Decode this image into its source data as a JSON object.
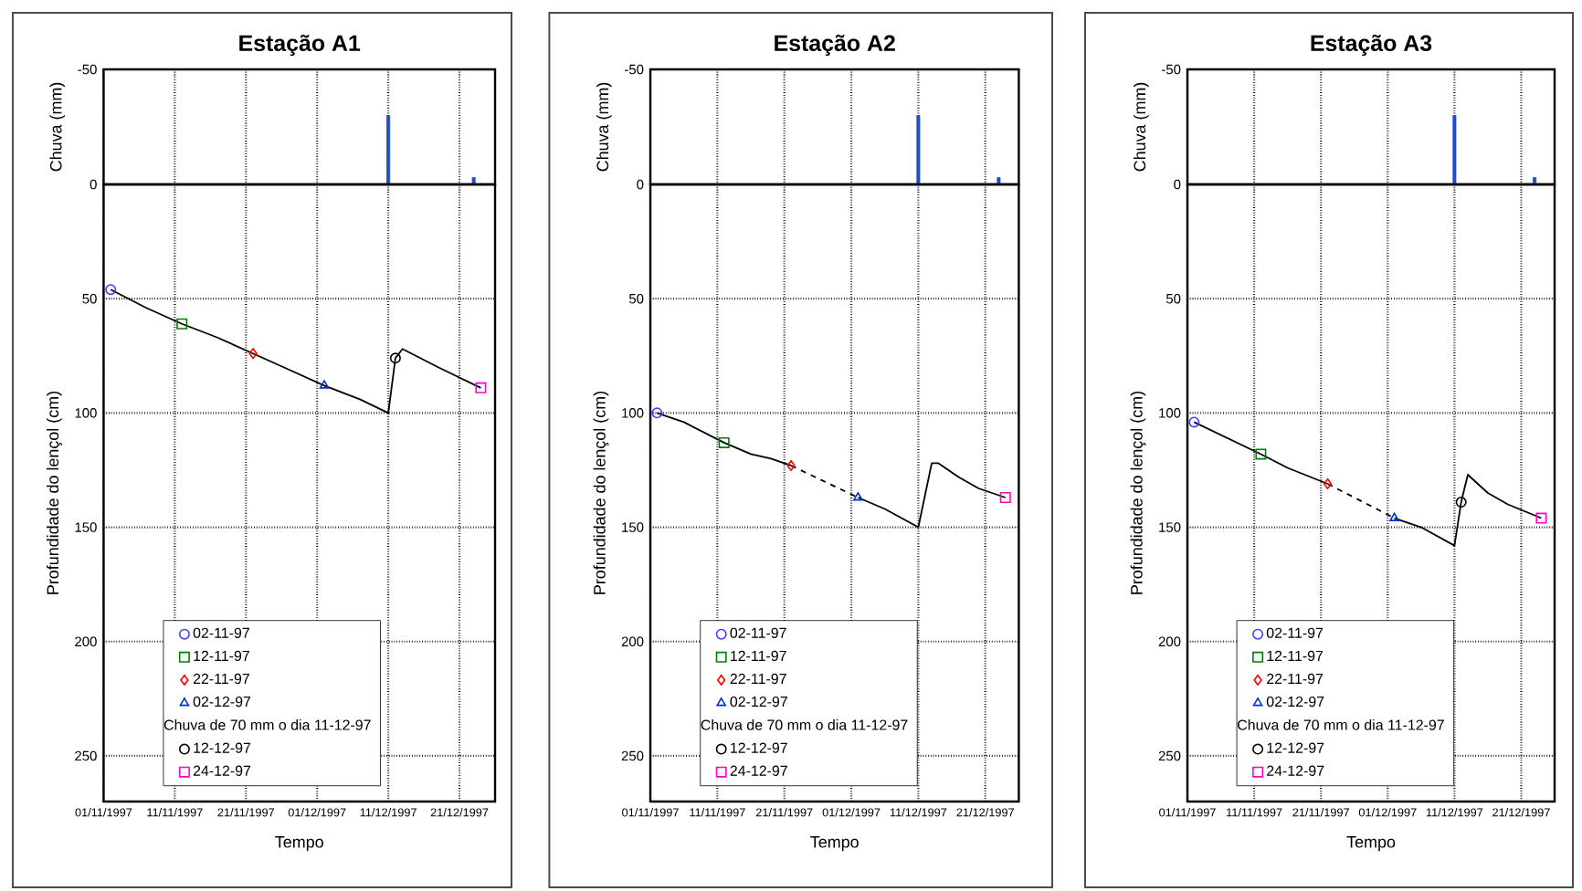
{
  "chart_data": [
    {
      "type": "bar",
      "title": "Estação A1",
      "ylabel": "Chuva (mm)",
      "x": [
        "1997-12-11",
        "1997-12-23"
      ],
      "values": [
        -30,
        -3
      ],
      "color": "#1f4fc8",
      "xlim": [
        "1997-11-01",
        "1997-12-26"
      ],
      "xticks": [
        {
          "value": "1997-11-01",
          "label": null
        },
        {
          "value": "1997-11-11",
          "label": null
        },
        {
          "value": "1997-11-21",
          "label": null
        },
        {
          "value": "1997-12-01",
          "label": null
        },
        {
          "value": "1997-12-11",
          "label": null
        },
        {
          "value": "1997-12-21",
          "label": null
        }
      ],
      "ylim": [
        0,
        -50
      ],
      "yticks": [
        -50,
        0
      ],
      "grid": true,
      "tick_labels": "y"
    },
    {
      "type": "line",
      "xlabel": "Tempo",
      "ylabel": "Profundidade do lençol (cm)",
      "xlim": [
        "1997-11-01",
        "1997-12-26"
      ],
      "xticks": [
        {
          "value": "1997-11-01",
          "label": "01/11/1997"
        },
        {
          "value": "1997-11-11",
          "label": "11/11/1997"
        },
        {
          "value": "1997-11-21",
          "label": "21/11/1997"
        },
        {
          "value": "1997-12-01",
          "label": "01/12/1997"
        },
        {
          "value": "1997-12-11",
          "label": "11/12/1997"
        },
        {
          "value": "1997-12-21",
          "label": "21/12/1997"
        }
      ],
      "ylim": [
        270,
        0
      ],
      "yticks": [
        50,
        100,
        150,
        200,
        250
      ],
      "grid": true,
      "legend": "bottom",
      "annotations": [
        "Chuva de 70 mm o dia 11-12-97"
      ],
      "series": [
        {
          "type": "line",
          "color": "#000000",
          "line_style": "solid",
          "x": [
            "1997-11-02",
            "1997-11-07",
            "1997-11-12",
            "1997-11-17",
            "1997-11-22",
            "1997-11-27",
            "1997-12-02",
            "1997-12-07",
            "1997-12-11",
            "1997-12-12",
            "1997-12-13",
            "1997-12-18",
            "1997-12-24"
          ],
          "values": [
            46,
            54,
            61,
            67,
            74,
            81,
            88,
            94,
            100,
            76,
            72,
            80,
            89
          ]
        },
        {
          "type": "scatter",
          "name": "02-11-97",
          "color": "#4040ff",
          "marker": "circle",
          "x": [
            "1997-11-02"
          ],
          "values": [
            46
          ]
        },
        {
          "type": "scatter",
          "name": "12-11-97",
          "color": "#008000",
          "marker": "square",
          "x": [
            "1997-11-12"
          ],
          "values": [
            61
          ]
        },
        {
          "type": "scatter",
          "name": "22-11-97",
          "color": "#ff0000",
          "marker": "diamond",
          "x": [
            "1997-11-22"
          ],
          "values": [
            74
          ]
        },
        {
          "type": "scatter",
          "name": "02-12-97",
          "color": "#0033cc",
          "marker": "triangle",
          "x": [
            "1997-12-02"
          ],
          "values": [
            88
          ]
        },
        {
          "type": "scatter",
          "name": "12-12-97",
          "color": "#000000",
          "marker": "circle",
          "x": [
            "1997-12-12"
          ],
          "values": [
            76
          ]
        },
        {
          "type": "scatter",
          "name": "24-12-97",
          "color": "#ff00cc",
          "marker": "square",
          "x": [
            "1997-12-24"
          ],
          "values": [
            89
          ]
        }
      ]
    },
    {
      "type": "bar",
      "title": "Estação A2",
      "ylabel": "Chuva (mm)",
      "x": [
        "1997-12-11",
        "1997-12-23"
      ],
      "values": [
        -30,
        -3
      ],
      "color": "#1f4fc8",
      "xlim": [
        "1997-11-01",
        "1997-12-26"
      ],
      "xticks": [
        {
          "value": "1997-11-01",
          "label": null
        },
        {
          "value": "1997-11-11",
          "label": null
        },
        {
          "value": "1997-11-21",
          "label": null
        },
        {
          "value": "1997-12-01",
          "label": null
        },
        {
          "value": "1997-12-11",
          "label": null
        },
        {
          "value": "1997-12-21",
          "label": null
        }
      ],
      "ylim": [
        0,
        -50
      ],
      "yticks": [
        -50,
        0
      ],
      "grid": true,
      "tick_labels": "y"
    },
    {
      "type": "line",
      "xlabel": "Tempo",
      "ylabel": "Profundidade do lençol (cm)",
      "xlim": [
        "1997-11-01",
        "1997-12-26"
      ],
      "xticks": [
        {
          "value": "1997-11-01",
          "label": "01/11/1997"
        },
        {
          "value": "1997-11-11",
          "label": "11/11/1997"
        },
        {
          "value": "1997-11-21",
          "label": "21/11/1997"
        },
        {
          "value": "1997-12-01",
          "label": "01/12/1997"
        },
        {
          "value": "1997-12-11",
          "label": "11/12/1997"
        },
        {
          "value": "1997-12-21",
          "label": "21/12/1997"
        }
      ],
      "ylim": [
        270,
        0
      ],
      "yticks": [
        50,
        100,
        150,
        200,
        250
      ],
      "grid": true,
      "legend": "bottom",
      "annotations": [
        "Chuva de 70 mm o dia 11-12-97"
      ],
      "series": [
        {
          "type": "line",
          "color": "#000000",
          "line_style": "solid",
          "x": [
            "1997-11-02",
            "1997-11-06",
            "1997-11-12",
            "1997-11-16",
            "1997-11-19",
            "1997-11-22"
          ],
          "values": [
            100,
            104,
            113,
            118,
            120,
            123
          ]
        },
        {
          "type": "line",
          "color": "#000000",
          "line_style": "dashed",
          "x": [
            "1997-11-22",
            "1997-12-02"
          ],
          "values": [
            123,
            137
          ]
        },
        {
          "type": "line",
          "color": "#000000",
          "line_style": "solid",
          "x": [
            "1997-12-02",
            "1997-12-06",
            "1997-12-11",
            "1997-12-13",
            "1997-12-14",
            "1997-12-17",
            "1997-12-20",
            "1997-12-24"
          ],
          "values": [
            137,
            142,
            150,
            122,
            122,
            128,
            133,
            137
          ]
        },
        {
          "type": "scatter",
          "name": "02-11-97",
          "color": "#4040ff",
          "marker": "circle",
          "x": [
            "1997-11-02"
          ],
          "values": [
            100
          ]
        },
        {
          "type": "scatter",
          "name": "12-11-97",
          "color": "#008000",
          "marker": "square",
          "x": [
            "1997-11-12"
          ],
          "values": [
            113
          ]
        },
        {
          "type": "scatter",
          "name": "22-11-97",
          "color": "#ff0000",
          "marker": "diamond",
          "x": [
            "1997-11-22"
          ],
          "values": [
            123
          ]
        },
        {
          "type": "scatter",
          "name": "02-12-97",
          "color": "#0033cc",
          "marker": "triangle",
          "x": [
            "1997-12-02"
          ],
          "values": [
            137
          ]
        },
        {
          "type": "scatter",
          "name": "12-12-97",
          "color": "#000000",
          "marker": "circle",
          "values": [
            null
          ]
        },
        {
          "type": "scatter",
          "name": "24-12-97",
          "color": "#ff00cc",
          "marker": "square",
          "x": [
            "1997-12-24"
          ],
          "values": [
            137
          ]
        }
      ]
    },
    {
      "type": "bar",
      "title": "Estação A3",
      "ylabel": "Chuva (mm)",
      "x": [
        "1997-12-11",
        "1997-12-23"
      ],
      "values": [
        -30,
        -3
      ],
      "color": "#1f4fc8",
      "xlim": [
        "1997-11-01",
        "1997-12-26"
      ],
      "xticks": [
        {
          "value": "1997-11-01",
          "label": null
        },
        {
          "value": "1997-11-11",
          "label": null
        },
        {
          "value": "1997-11-21",
          "label": null
        },
        {
          "value": "1997-12-01",
          "label": null
        },
        {
          "value": "1997-12-11",
          "label": null
        },
        {
          "value": "1997-12-21",
          "label": null
        }
      ],
      "ylim": [
        0,
        -50
      ],
      "yticks": [
        -50,
        0
      ],
      "grid": true,
      "tick_labels": "y"
    },
    {
      "type": "line",
      "xlabel": "Tempo",
      "ylabel": "Profundidade do lençol (cm)",
      "xlim": [
        "1997-11-01",
        "1997-12-26"
      ],
      "xticks": [
        {
          "value": "1997-11-01",
          "label": "01/11/1997"
        },
        {
          "value": "1997-11-11",
          "label": "11/11/1997"
        },
        {
          "value": "1997-11-21",
          "label": "21/11/1997"
        },
        {
          "value": "1997-12-01",
          "label": "01/12/1997"
        },
        {
          "value": "1997-12-11",
          "label": "11/12/1997"
        },
        {
          "value": "1997-12-21",
          "label": "21/12/1997"
        }
      ],
      "ylim": [
        270,
        0
      ],
      "yticks": [
        50,
        100,
        150,
        200,
        250
      ],
      "grid": true,
      "legend": "bottom",
      "annotations": [
        "Chuva de 70 mm o dia 11-12-97"
      ],
      "series": [
        {
          "type": "line",
          "color": "#000000",
          "line_style": "solid",
          "x": [
            "1997-11-02",
            "1997-11-12",
            "1997-11-16",
            "1997-11-22"
          ],
          "values": [
            104,
            118,
            124,
            131
          ]
        },
        {
          "type": "line",
          "color": "#000000",
          "line_style": "dashed",
          "x": [
            "1997-11-22",
            "1997-12-02"
          ],
          "values": [
            131,
            146
          ]
        },
        {
          "type": "line",
          "color": "#000000",
          "line_style": "solid",
          "x": [
            "1997-12-02",
            "1997-12-06",
            "1997-12-11",
            "1997-12-12",
            "1997-12-13",
            "1997-12-16",
            "1997-12-19",
            "1997-12-24"
          ],
          "values": [
            146,
            150,
            158,
            139,
            127,
            135,
            140,
            146
          ]
        },
        {
          "type": "scatter",
          "name": "02-11-97",
          "color": "#4040ff",
          "marker": "circle",
          "x": [
            "1997-11-02"
          ],
          "values": [
            104
          ]
        },
        {
          "type": "scatter",
          "name": "12-11-97",
          "color": "#008000",
          "marker": "square",
          "x": [
            "1997-11-12"
          ],
          "values": [
            118
          ]
        },
        {
          "type": "scatter",
          "name": "22-11-97",
          "color": "#ff0000",
          "marker": "diamond",
          "x": [
            "1997-11-22"
          ],
          "values": [
            131
          ]
        },
        {
          "type": "scatter",
          "name": "02-12-97",
          "color": "#0033cc",
          "marker": "triangle",
          "x": [
            "1997-12-02"
          ],
          "values": [
            146
          ]
        },
        {
          "type": "scatter",
          "name": "12-12-97",
          "color": "#000000",
          "marker": "circle",
          "x": [
            "1997-12-12"
          ],
          "values": [
            139
          ]
        },
        {
          "type": "scatter",
          "name": "24-12-97",
          "color": "#ff00cc",
          "marker": "square",
          "x": [
            "1997-12-24"
          ],
          "values": [
            146
          ]
        }
      ]
    }
  ]
}
